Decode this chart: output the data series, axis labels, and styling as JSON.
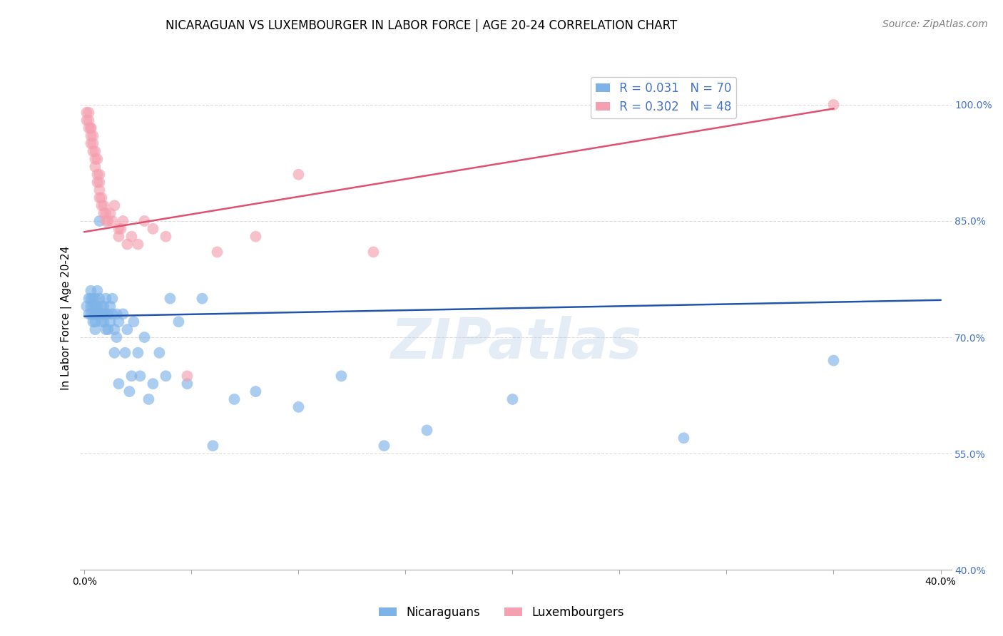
{
  "title": "NICARAGUAN VS LUXEMBOURGER IN LABOR FORCE | AGE 20-24 CORRELATION CHART",
  "source": "Source: ZipAtlas.com",
  "ylabel_label": "In Labor Force | Age 20-24",
  "xlim": [
    -0.002,
    0.405
  ],
  "ylim": [
    0.4,
    1.05
  ],
  "yticks": [
    0.4,
    0.55,
    0.7,
    0.85,
    1.0
  ],
  "ytick_labels": [
    "40.0%",
    "55.0%",
    "70.0%",
    "85.0%",
    "100.0%"
  ],
  "xticks": [
    0.0,
    0.05,
    0.1,
    0.15,
    0.2,
    0.25,
    0.3,
    0.35,
    0.4
  ],
  "xtick_labels": [
    "0.0%",
    "",
    "",
    "",
    "",
    "",
    "",
    "",
    "40.0%"
  ],
  "blue_R": "0.031",
  "blue_N": "70",
  "pink_R": "0.302",
  "pink_N": "48",
  "blue_color": "#7EB3E8",
  "pink_color": "#F4A0B0",
  "blue_line_color": "#2255AA",
  "pink_line_color": "#E05070",
  "watermark": "ZIPatlas",
  "legend_label_blue": "Nicaraguans",
  "legend_label_pink": "Luxembourgers",
  "blue_scatter_x": [
    0.001,
    0.002,
    0.002,
    0.003,
    0.003,
    0.003,
    0.003,
    0.004,
    0.004,
    0.004,
    0.004,
    0.005,
    0.005,
    0.005,
    0.005,
    0.005,
    0.005,
    0.006,
    0.006,
    0.007,
    0.007,
    0.007,
    0.008,
    0.008,
    0.008,
    0.009,
    0.009,
    0.009,
    0.01,
    0.01,
    0.01,
    0.011,
    0.011,
    0.012,
    0.012,
    0.013,
    0.013,
    0.014,
    0.014,
    0.015,
    0.015,
    0.016,
    0.016,
    0.018,
    0.019,
    0.02,
    0.021,
    0.022,
    0.023,
    0.025,
    0.026,
    0.028,
    0.03,
    0.032,
    0.035,
    0.038,
    0.04,
    0.044,
    0.048,
    0.055,
    0.06,
    0.07,
    0.08,
    0.1,
    0.12,
    0.14,
    0.16,
    0.2,
    0.28,
    0.35
  ],
  "blue_scatter_y": [
    0.74,
    0.73,
    0.75,
    0.74,
    0.73,
    0.75,
    0.76,
    0.72,
    0.73,
    0.74,
    0.75,
    0.73,
    0.74,
    0.75,
    0.72,
    0.71,
    0.73,
    0.74,
    0.76,
    0.73,
    0.75,
    0.85,
    0.73,
    0.74,
    0.72,
    0.73,
    0.74,
    0.72,
    0.71,
    0.73,
    0.75,
    0.73,
    0.71,
    0.74,
    0.72,
    0.73,
    0.75,
    0.68,
    0.71,
    0.73,
    0.7,
    0.72,
    0.64,
    0.73,
    0.68,
    0.71,
    0.63,
    0.65,
    0.72,
    0.68,
    0.65,
    0.7,
    0.62,
    0.64,
    0.68,
    0.65,
    0.75,
    0.72,
    0.64,
    0.75,
    0.56,
    0.62,
    0.63,
    0.61,
    0.65,
    0.56,
    0.58,
    0.62,
    0.57,
    0.67
  ],
  "pink_scatter_x": [
    0.001,
    0.001,
    0.002,
    0.002,
    0.002,
    0.003,
    0.003,
    0.003,
    0.003,
    0.004,
    0.004,
    0.004,
    0.005,
    0.005,
    0.005,
    0.006,
    0.006,
    0.006,
    0.007,
    0.007,
    0.007,
    0.007,
    0.008,
    0.008,
    0.009,
    0.009,
    0.01,
    0.01,
    0.011,
    0.012,
    0.013,
    0.014,
    0.016,
    0.016,
    0.017,
    0.018,
    0.02,
    0.022,
    0.025,
    0.028,
    0.032,
    0.038,
    0.048,
    0.062,
    0.08,
    0.1,
    0.135,
    0.35
  ],
  "pink_scatter_y": [
    0.99,
    0.98,
    0.99,
    0.98,
    0.97,
    0.97,
    0.97,
    0.96,
    0.95,
    0.96,
    0.95,
    0.94,
    0.94,
    0.93,
    0.92,
    0.93,
    0.91,
    0.9,
    0.9,
    0.89,
    0.88,
    0.91,
    0.88,
    0.87,
    0.87,
    0.86,
    0.86,
    0.85,
    0.85,
    0.86,
    0.85,
    0.87,
    0.84,
    0.83,
    0.84,
    0.85,
    0.82,
    0.83,
    0.82,
    0.85,
    0.84,
    0.83,
    0.65,
    0.81,
    0.83,
    0.91,
    0.81,
    1.0
  ],
  "blue_trend_x": [
    0.0,
    0.4
  ],
  "blue_trend_y": [
    0.727,
    0.748
  ],
  "pink_trend_x": [
    0.0,
    0.35
  ],
  "pink_trend_y": [
    0.836,
    0.995
  ],
  "title_fontsize": 12,
  "axis_label_fontsize": 11,
  "tick_fontsize": 10,
  "legend_fontsize": 12,
  "source_fontsize": 10,
  "background_color": "#ffffff",
  "grid_color": "#dddddd"
}
